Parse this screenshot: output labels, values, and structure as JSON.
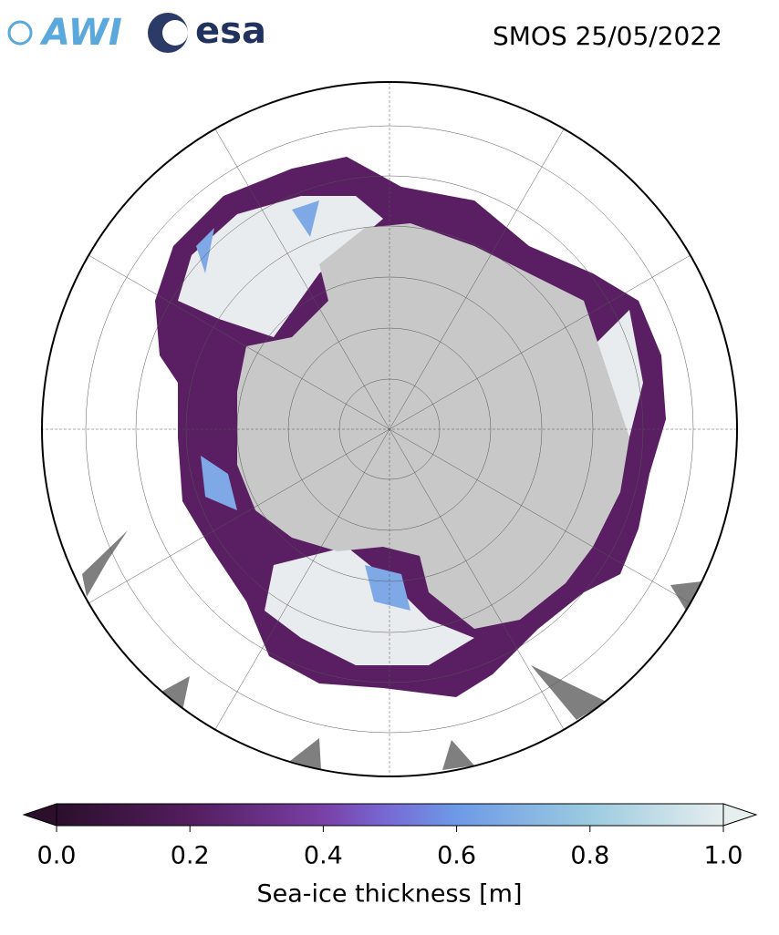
{
  "header": {
    "logos": [
      "AWI",
      "esa"
    ],
    "title": "SMOS 25/05/2022"
  },
  "colorbar": {
    "label": "Sea-ice thickness [m]",
    "xlim": [
      0,
      1
    ],
    "ticks": [
      {
        "value": 0,
        "label": "0.0"
      },
      {
        "value": 0.2,
        "label": "0.2"
      },
      {
        "value": 0.4,
        "label": "0.4"
      },
      {
        "value": 0.6,
        "label": "0.6"
      },
      {
        "value": 0.8,
        "label": "0.8"
      },
      {
        "value": 1,
        "label": "1.0"
      }
    ]
  }
}
